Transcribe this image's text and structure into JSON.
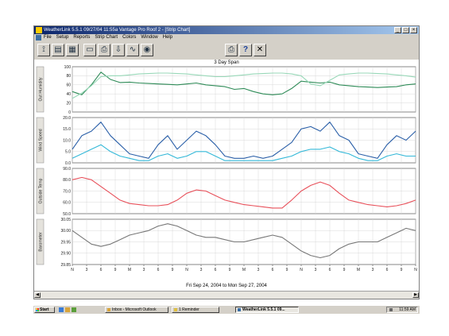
{
  "window": {
    "title": "WeatherLink 5.5.1  09/27/04  11:55a Vantage Pro Roof 2 - [Strip Chart]",
    "minimize_glyph": "_",
    "maximize_glyph": "□",
    "close_glyph": "×"
  },
  "menu": [
    "File",
    "Setup",
    "Reports",
    "Strip Chart",
    "Colors",
    "Window",
    "Help"
  ],
  "toolbar": {
    "icons": [
      "antenna-icon",
      "bulletin-icon",
      "stations-icon",
      "browse-icon",
      "print-icon",
      "download-icon",
      "noaa-logo-icon"
    ],
    "right_icons": [
      "print-icon",
      "help-icon",
      "close-icon"
    ],
    "help_glyph": "?",
    "close_glyph": "✕"
  },
  "chart": {
    "span_title": "3 Day Span",
    "date_range": "Fri Sep 24, 2004  to  Mon Sep 27, 2004",
    "x_ticks": [
      "N",
      "3",
      "6",
      "9",
      "M",
      "3",
      "6",
      "9",
      "N",
      "3",
      "6",
      "9",
      "M",
      "3",
      "6",
      "9",
      "N",
      "3",
      "6",
      "9",
      "M",
      "3",
      "6",
      "9",
      "N"
    ]
  },
  "chart_data": [
    {
      "type": "line",
      "ylabel": "Out Humidity",
      "ylim": [
        0,
        100
      ],
      "yticks": [
        "100",
        "80",
        "60",
        "40",
        "20",
        "0"
      ],
      "series": [
        {
          "color": "#2e8b57",
          "values": [
            45,
            38,
            60,
            88,
            72,
            65,
            66,
            64,
            63,
            62,
            61,
            60,
            62,
            64,
            60,
            58,
            56,
            50,
            52,
            45,
            40,
            38,
            40,
            52,
            68,
            66,
            64,
            66,
            60,
            58,
            56,
            55,
            54,
            55,
            56,
            60,
            62
          ]
        },
        {
          "color": "#98d8b8",
          "values": [
            30,
            42,
            58,
            78,
            80,
            80,
            82,
            84,
            85,
            86,
            86,
            85,
            84,
            82,
            80,
            78,
            78,
            80,
            82,
            84,
            85,
            86,
            86,
            84,
            80,
            62,
            58,
            70,
            82,
            84,
            86,
            86,
            85,
            84,
            82,
            80,
            77
          ]
        }
      ]
    },
    {
      "type": "line",
      "ylabel": "Wind Speed",
      "ylim": [
        0,
        20
      ],
      "yticks": [
        "20.0",
        "15.0",
        "10.0",
        "5.0",
        "0.0"
      ],
      "series": [
        {
          "color": "#2a5fa8",
          "values": [
            6,
            12,
            14,
            18,
            12,
            8,
            4,
            3,
            2,
            8,
            12,
            6,
            10,
            14,
            12,
            8,
            3,
            2,
            2,
            3,
            2,
            3,
            6,
            9,
            15,
            16,
            14,
            18,
            12,
            10,
            4,
            3,
            2,
            8,
            12,
            10,
            14
          ]
        },
        {
          "color": "#33b8d8",
          "values": [
            2,
            4,
            6,
            8,
            5,
            3,
            2,
            1,
            1,
            3,
            4,
            2,
            3,
            5,
            5,
            3,
            1,
            1,
            1,
            1,
            1,
            1,
            2,
            3,
            5,
            6,
            6,
            7,
            5,
            4,
            2,
            1,
            1,
            3,
            4,
            3,
            3
          ]
        }
      ]
    },
    {
      "type": "line",
      "ylabel": "Outside Temp",
      "ylim": [
        50,
        90
      ],
      "yticks": [
        "90.0",
        "80.0",
        "70.0",
        "60.0",
        "50.0"
      ],
      "series": [
        {
          "color": "#e8505a",
          "values": [
            80,
            82,
            80,
            74,
            68,
            62,
            59,
            58,
            57,
            57,
            58,
            62,
            68,
            71,
            70,
            66,
            62,
            60,
            58,
            57,
            56,
            55,
            55,
            62,
            70,
            75,
            78,
            75,
            68,
            62,
            60,
            58,
            57,
            56,
            57,
            59,
            62
          ]
        }
      ]
    },
    {
      "type": "line",
      "ylabel": "Barometer",
      "ylim": [
        29.85,
        30.05
      ],
      "yticks": [
        "30.05",
        "30.00",
        "29.95",
        "29.90",
        "29.85"
      ],
      "series": [
        {
          "color": "#777777",
          "values": [
            30.0,
            29.97,
            29.94,
            29.93,
            29.94,
            29.96,
            29.98,
            29.99,
            30.0,
            30.02,
            30.03,
            30.02,
            30.0,
            29.98,
            29.97,
            29.97,
            29.96,
            29.95,
            29.95,
            29.96,
            29.97,
            29.98,
            29.97,
            29.94,
            29.91,
            29.89,
            29.88,
            29.89,
            29.92,
            29.94,
            29.95,
            29.95,
            29.95,
            29.97,
            29.99,
            30.01,
            30.0
          ]
        }
      ]
    }
  ],
  "taskbar": {
    "start_label": "Start",
    "tasks": [
      "Inbox - Microsoft Outlook",
      "1 Reminder",
      "WeatherLink 5.5.1  09..."
    ],
    "clock": "11:59 AM"
  },
  "colors": {
    "titlebar": "#0a246a",
    "chrome": "#d4d0c8",
    "plot_bg": "#ffffff",
    "grid": "#d8d8d8"
  }
}
